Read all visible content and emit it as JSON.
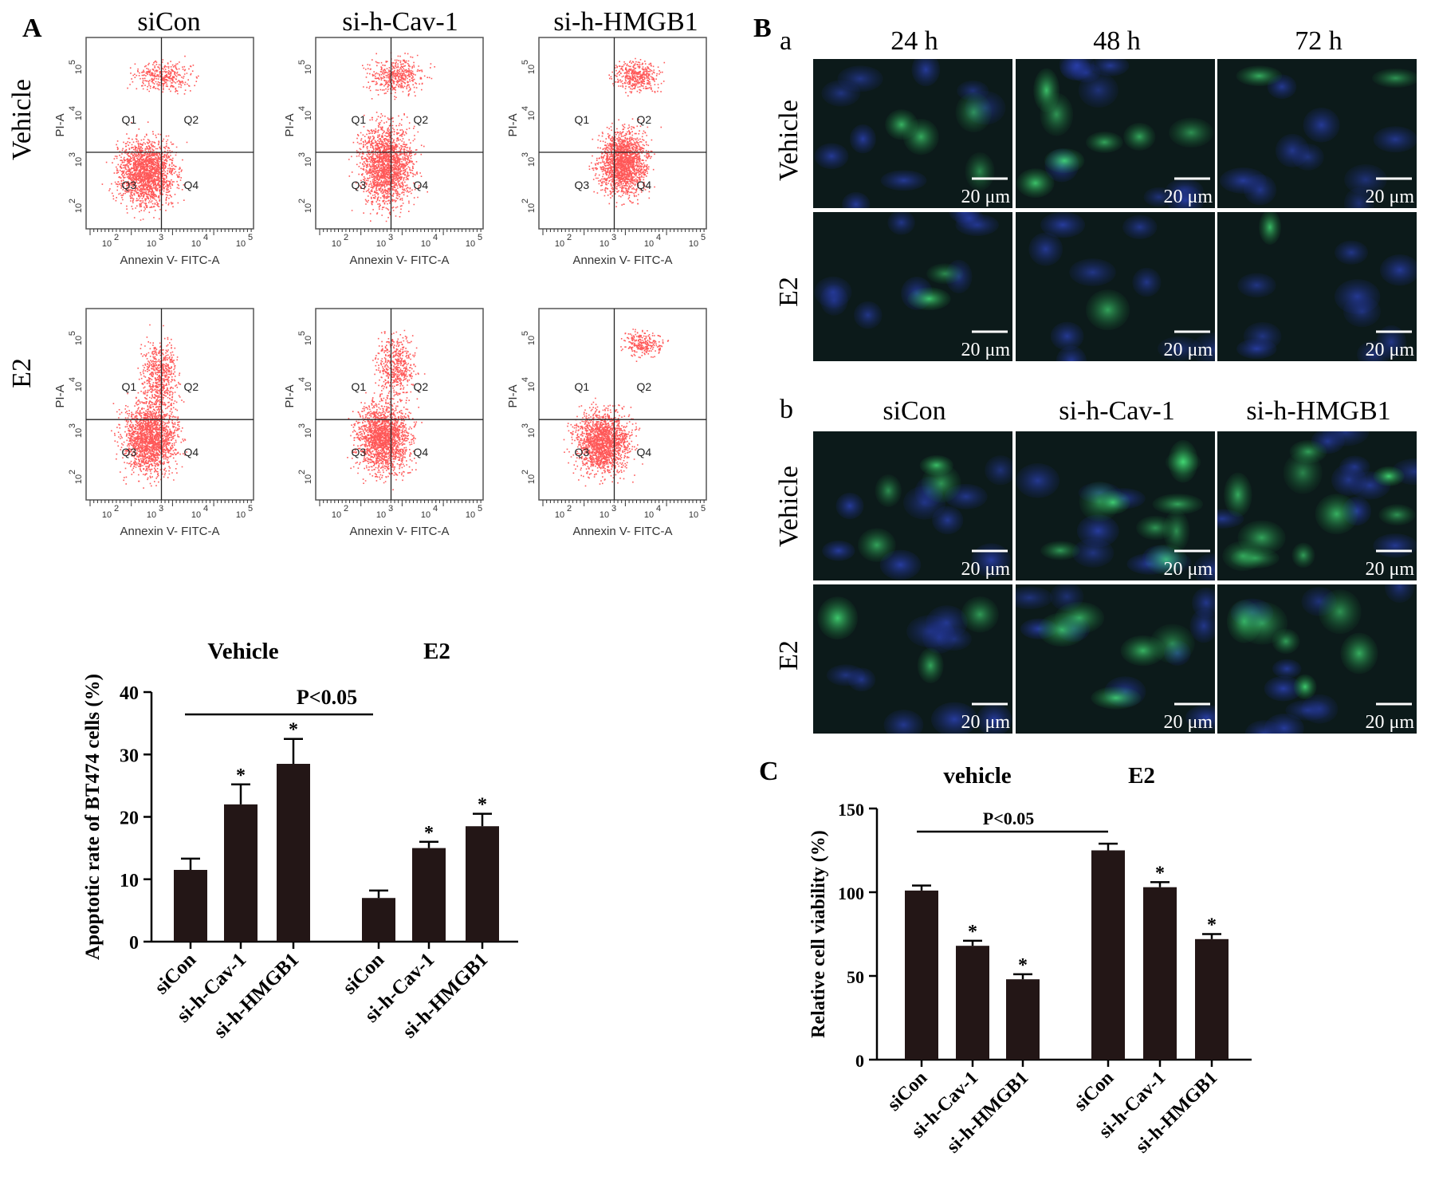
{
  "panel_labels": {
    "A": "A",
    "B": "B",
    "C": "C",
    "Ba": "a",
    "Bb": "b"
  },
  "panelA": {
    "columns": [
      "siCon",
      "si-h-Cav-1",
      "si-h-HMGB1"
    ],
    "rows": [
      "Vehicle",
      "E2"
    ],
    "x_axis_label": "Annexin V- FITC-A",
    "y_axis_label": "PI-A",
    "tick_labels": [
      "10",
      "10",
      "10",
      "10"
    ],
    "tick_exponents": [
      "2",
      "3",
      "4",
      "5"
    ],
    "quadrants": [
      "Q1",
      "Q2",
      "Q3",
      "Q4"
    ],
    "dot_color": "#ff2020"
  },
  "panelB": {
    "a_columns": [
      "24 h",
      "48 h",
      "72 h"
    ],
    "b_columns": [
      "siCon",
      "si-h-Cav-1",
      "si-h-HMGB1"
    ],
    "rows": [
      "Vehicle",
      "E2"
    ],
    "scale_bar": "20 μm",
    "nuclear_color": "#2a3fa8",
    "signal_color": "#3ed46a"
  },
  "chart_data": [
    {
      "type": "bar",
      "ylabel": "Apoptotic rate of BT474 cells (%)",
      "group_labels": [
        "Vehicle",
        "E2"
      ],
      "categories": [
        "siCon",
        "si-h-Cav-1",
        "si-h-HMGB1",
        "siCon",
        "si-h-Cav-1",
        "si-h-HMGB1"
      ],
      "values": [
        11.5,
        22,
        28.5,
        7,
        15,
        18.5
      ],
      "errors": [
        1.8,
        3.2,
        4.0,
        1.2,
        1.0,
        2.0
      ],
      "significance": [
        "",
        "*",
        "*",
        "",
        "*",
        "*"
      ],
      "comparison": "P<0.05",
      "ylim": [
        0,
        40
      ],
      "yticks": [
        "0",
        "10",
        "20",
        "30",
        "40"
      ],
      "bar_color": "#231616"
    },
    {
      "type": "bar",
      "ylabel": "Relative cell viability (%)",
      "group_labels": [
        "vehicle",
        "E2"
      ],
      "categories": [
        "siCon",
        "si-h-Cav-1",
        "si-h-HMGB1",
        "siCon",
        "si-h-Cav-1",
        "si-h-HMGB1"
      ],
      "values": [
        101,
        68,
        48,
        125,
        103,
        72
      ],
      "errors": [
        3,
        3,
        3,
        4,
        3,
        3
      ],
      "significance": [
        "",
        "*",
        "*",
        "",
        "*",
        "*"
      ],
      "comparison": "P<0.05",
      "ylim": [
        0,
        150
      ],
      "yticks": [
        "0",
        "50",
        "100",
        "150"
      ],
      "bar_color": "#231616"
    }
  ]
}
